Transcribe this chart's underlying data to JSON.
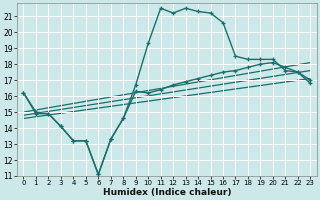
{
  "xlabel": "Humidex (Indice chaleur)",
  "bg_color": "#cce8e8",
  "grid_color": "#b0d8d8",
  "line_color": "#1a6e6e",
  "xlim": [
    -0.5,
    23.5
  ],
  "ylim": [
    11,
    21.8
  ],
  "xticks": [
    0,
    1,
    2,
    3,
    4,
    5,
    6,
    7,
    8,
    9,
    10,
    11,
    12,
    13,
    14,
    15,
    16,
    17,
    18,
    19,
    20,
    21,
    22,
    23
  ],
  "yticks": [
    11,
    12,
    13,
    14,
    15,
    16,
    17,
    18,
    19,
    20,
    21
  ],
  "curve_upper_x": [
    0,
    1,
    2,
    3,
    4,
    5,
    6,
    7,
    8,
    9,
    10,
    11,
    12,
    13,
    14,
    15,
    16,
    17,
    18,
    19,
    20,
    21,
    22,
    23
  ],
  "curve_upper_y": [
    16.2,
    15.0,
    14.9,
    14.1,
    13.2,
    13.2,
    11.1,
    13.3,
    14.6,
    16.7,
    19.3,
    21.5,
    21.2,
    21.5,
    21.3,
    21.2,
    20.6,
    18.5,
    18.3,
    18.3,
    18.3,
    17.6,
    17.5,
    16.8
  ],
  "curve_lower_x": [
    0,
    1,
    2,
    3,
    4,
    5,
    6,
    7,
    8,
    9,
    10,
    11,
    12,
    13,
    14,
    15,
    16,
    17,
    18,
    19,
    20,
    21,
    22,
    23
  ],
  "curve_lower_y": [
    16.2,
    14.9,
    14.9,
    14.1,
    13.2,
    13.2,
    11.1,
    13.3,
    14.6,
    16.3,
    16.2,
    16.4,
    16.7,
    16.9,
    17.1,
    17.3,
    17.5,
    17.6,
    17.8,
    18.0,
    18.1,
    17.8,
    17.5,
    17.0
  ],
  "line1_x": [
    0,
    23
  ],
  "line1_y": [
    15.0,
    18.1
  ],
  "line2_x": [
    0,
    23
  ],
  "line2_y": [
    14.8,
    17.6
  ],
  "line3_x": [
    0,
    23
  ],
  "line3_y": [
    14.6,
    17.1
  ]
}
